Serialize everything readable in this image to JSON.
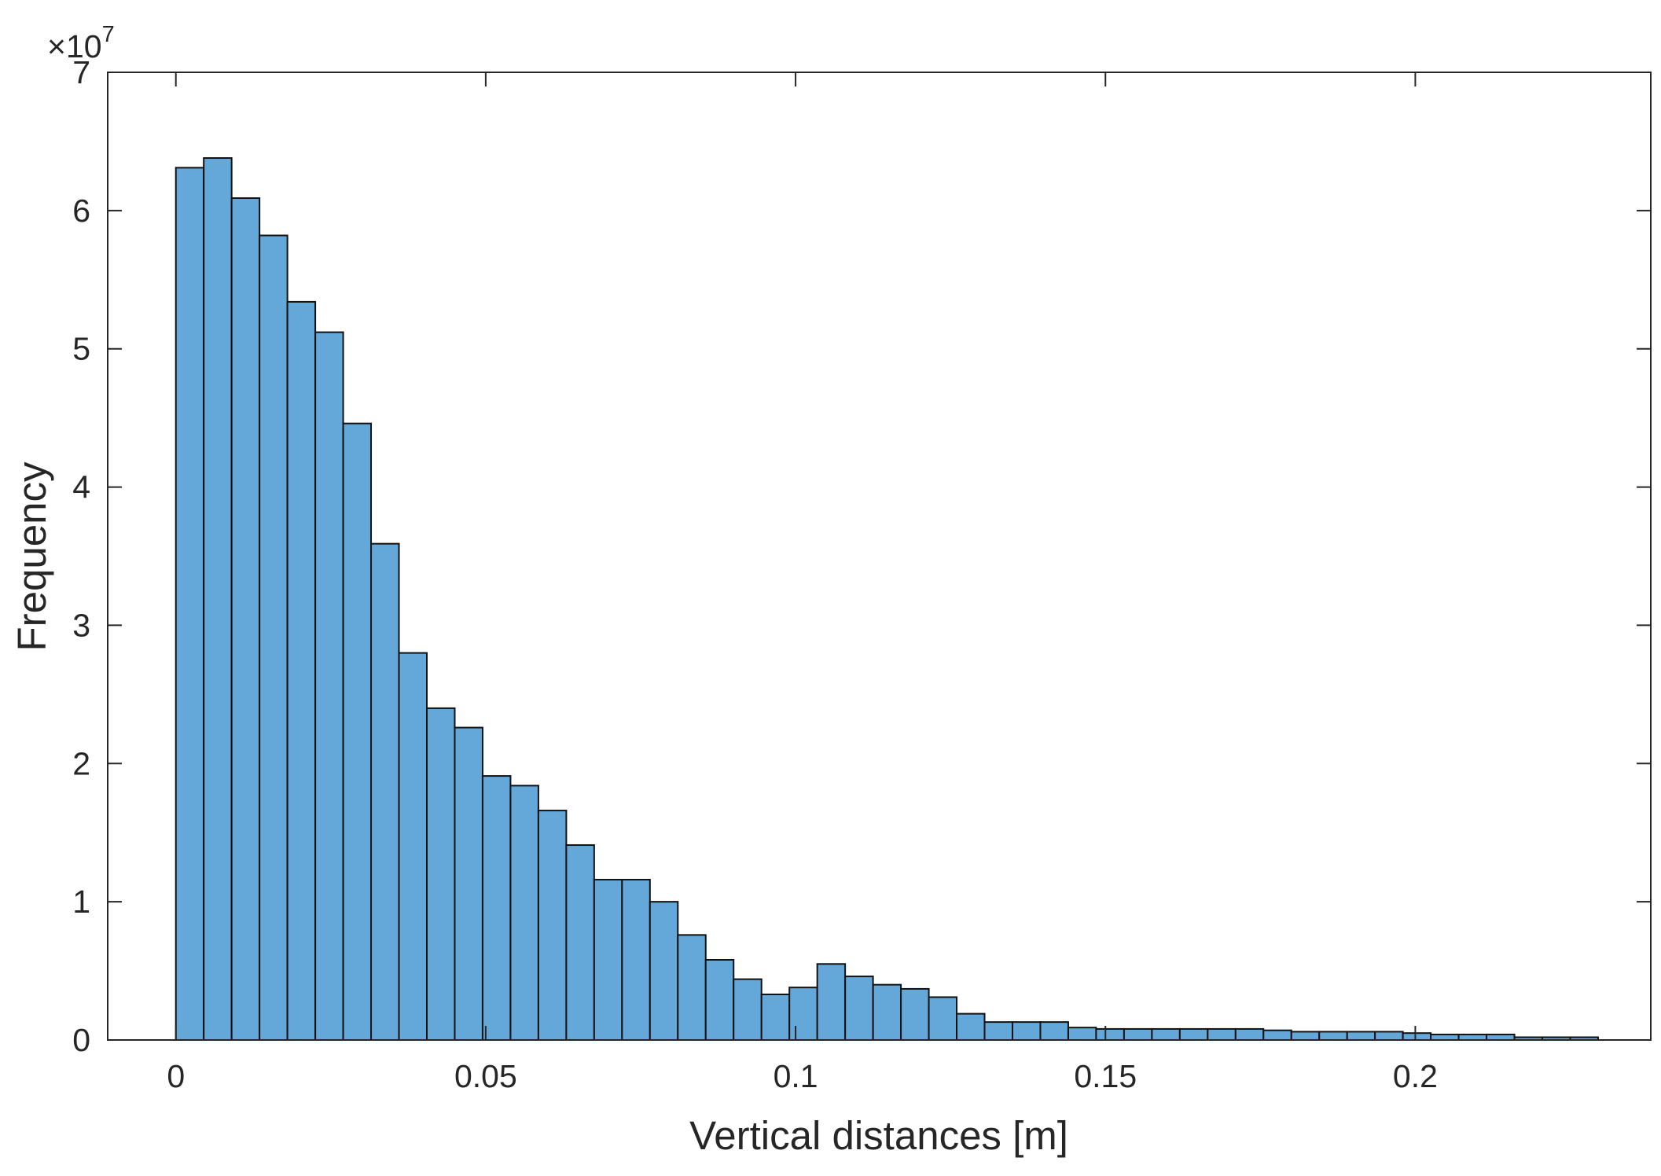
{
  "chart_data": {
    "type": "bar",
    "subtype": "histogram",
    "title": "",
    "xlabel": "Vertical distances [m]",
    "ylabel": "Frequency",
    "y_exponent_label": {
      "base": "×10",
      "power": "7"
    },
    "xlim": [
      -0.011,
      0.238
    ],
    "ylim": [
      0,
      7
    ],
    "y_scale_factor": 10000000,
    "x_ticks": [
      0,
      0.05,
      0.1,
      0.15,
      0.2
    ],
    "x_tick_labels": [
      "0",
      "0.05",
      "0.1",
      "0.15",
      "0.2"
    ],
    "y_ticks": [
      0,
      1,
      2,
      3,
      4,
      5,
      6,
      7
    ],
    "y_tick_labels": [
      "0",
      "1",
      "2",
      "3",
      "4",
      "5",
      "6",
      "7"
    ],
    "grid": false,
    "box": true,
    "bar_color": "#63a8d9",
    "edge_color": "#111111",
    "bin_width": 0.0045,
    "bin_start": 0,
    "values": [
      6.31,
      6.38,
      6.09,
      5.82,
      5.34,
      5.12,
      4.46,
      3.59,
      2.8,
      2.4,
      2.26,
      1.91,
      1.84,
      1.66,
      1.41,
      1.16,
      1.16,
      1.0,
      0.76,
      0.58,
      0.44,
      0.33,
      0.38,
      0.55,
      0.46,
      0.4,
      0.37,
      0.31,
      0.19,
      0.13,
      0.13,
      0.13,
      0.09,
      0.08,
      0.08,
      0.08,
      0.08,
      0.08,
      0.08,
      0.07,
      0.06,
      0.06,
      0.06,
      0.06,
      0.05,
      0.04,
      0.04,
      0.04,
      0.02,
      0.02,
      0.02
    ]
  }
}
